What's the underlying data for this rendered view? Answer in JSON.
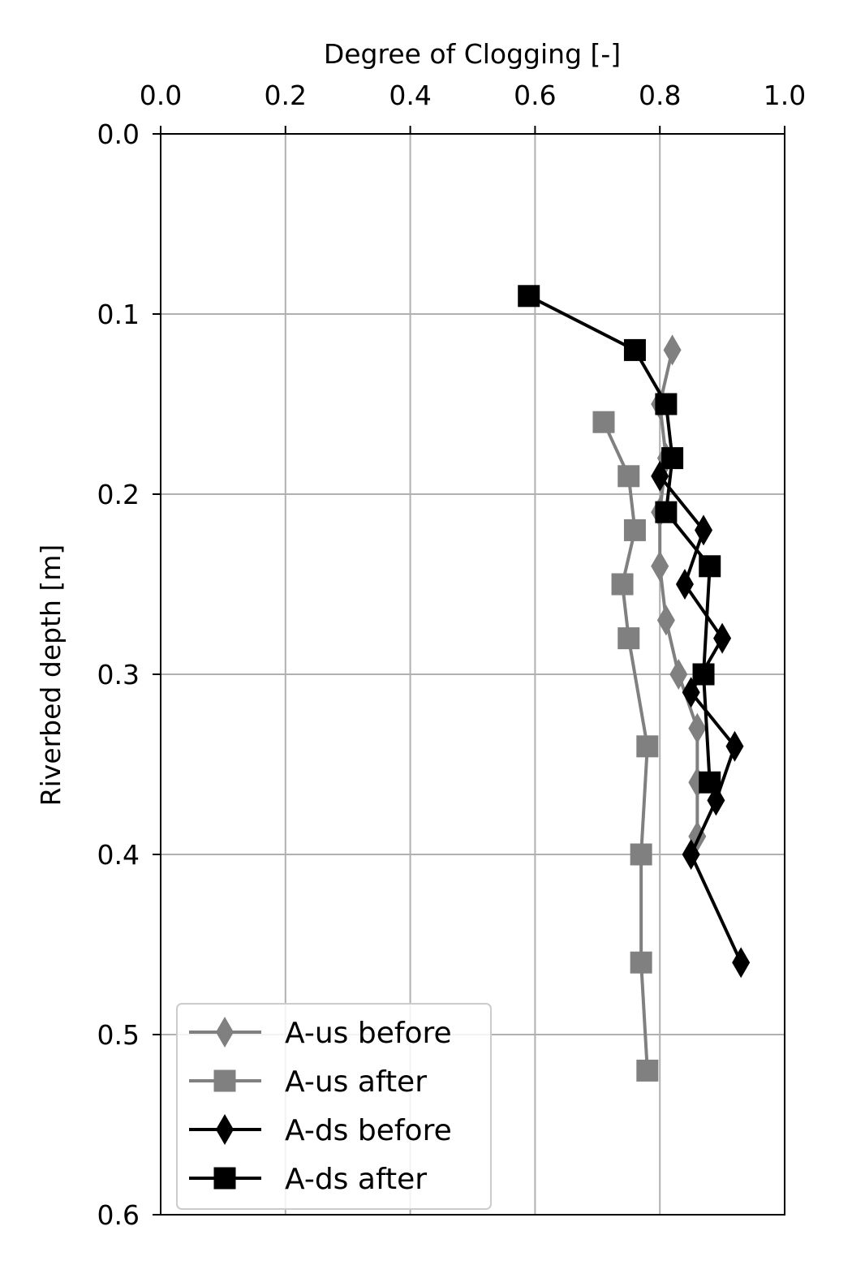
{
  "chart_data": {
    "type": "line",
    "title": "",
    "xlabel": "Degree of Clogging [-]",
    "ylabel": "Riverbed depth [m]",
    "xlim": [
      0.0,
      1.0
    ],
    "ylim": [
      0.0,
      0.6
    ],
    "y_inverted": true,
    "x_axis_position": "top",
    "x_ticks": [
      "0.0",
      "0.2",
      "0.4",
      "0.6",
      "0.8",
      "1.0"
    ],
    "y_ticks": [
      "0.0",
      "0.1",
      "0.2",
      "0.3",
      "0.4",
      "0.5",
      "0.6"
    ],
    "grid": true,
    "legend_position": "bottom-left",
    "series": [
      {
        "name": "A-us before",
        "color": "#808080",
        "marker": "diamond",
        "points": [
          {
            "x": 0.82,
            "y": 0.12
          },
          {
            "x": 0.8,
            "y": 0.15
          },
          {
            "x": 0.81,
            "y": 0.18
          },
          {
            "x": 0.8,
            "y": 0.21
          },
          {
            "x": 0.8,
            "y": 0.24
          },
          {
            "x": 0.81,
            "y": 0.27
          },
          {
            "x": 0.83,
            "y": 0.3
          },
          {
            "x": 0.86,
            "y": 0.33
          },
          {
            "x": 0.86,
            "y": 0.36
          },
          {
            "x": 0.86,
            "y": 0.39
          }
        ]
      },
      {
        "name": "A-us after",
        "color": "#808080",
        "marker": "square",
        "points": [
          {
            "x": 0.71,
            "y": 0.16
          },
          {
            "x": 0.75,
            "y": 0.19
          },
          {
            "x": 0.76,
            "y": 0.22
          },
          {
            "x": 0.74,
            "y": 0.25
          },
          {
            "x": 0.75,
            "y": 0.28
          },
          {
            "x": 0.78,
            "y": 0.34
          },
          {
            "x": 0.77,
            "y": 0.4
          },
          {
            "x": 0.77,
            "y": 0.46
          },
          {
            "x": 0.78,
            "y": 0.52
          }
        ]
      },
      {
        "name": "A-ds before",
        "color": "#000000",
        "marker": "diamond",
        "points": [
          {
            "x": 0.8,
            "y": 0.19
          },
          {
            "x": 0.87,
            "y": 0.22
          },
          {
            "x": 0.84,
            "y": 0.25
          },
          {
            "x": 0.9,
            "y": 0.28
          },
          {
            "x": 0.85,
            "y": 0.31
          },
          {
            "x": 0.92,
            "y": 0.34
          },
          {
            "x": 0.89,
            "y": 0.37
          },
          {
            "x": 0.85,
            "y": 0.4
          },
          {
            "x": 0.93,
            "y": 0.46
          }
        ]
      },
      {
        "name": "A-ds after",
        "color": "#000000",
        "marker": "square",
        "points": [
          {
            "x": 0.59,
            "y": 0.09
          },
          {
            "x": 0.76,
            "y": 0.12
          },
          {
            "x": 0.81,
            "y": 0.15
          },
          {
            "x": 0.82,
            "y": 0.18
          },
          {
            "x": 0.81,
            "y": 0.21
          },
          {
            "x": 0.88,
            "y": 0.24
          },
          {
            "x": 0.87,
            "y": 0.3
          },
          {
            "x": 0.88,
            "y": 0.36
          }
        ]
      }
    ]
  }
}
